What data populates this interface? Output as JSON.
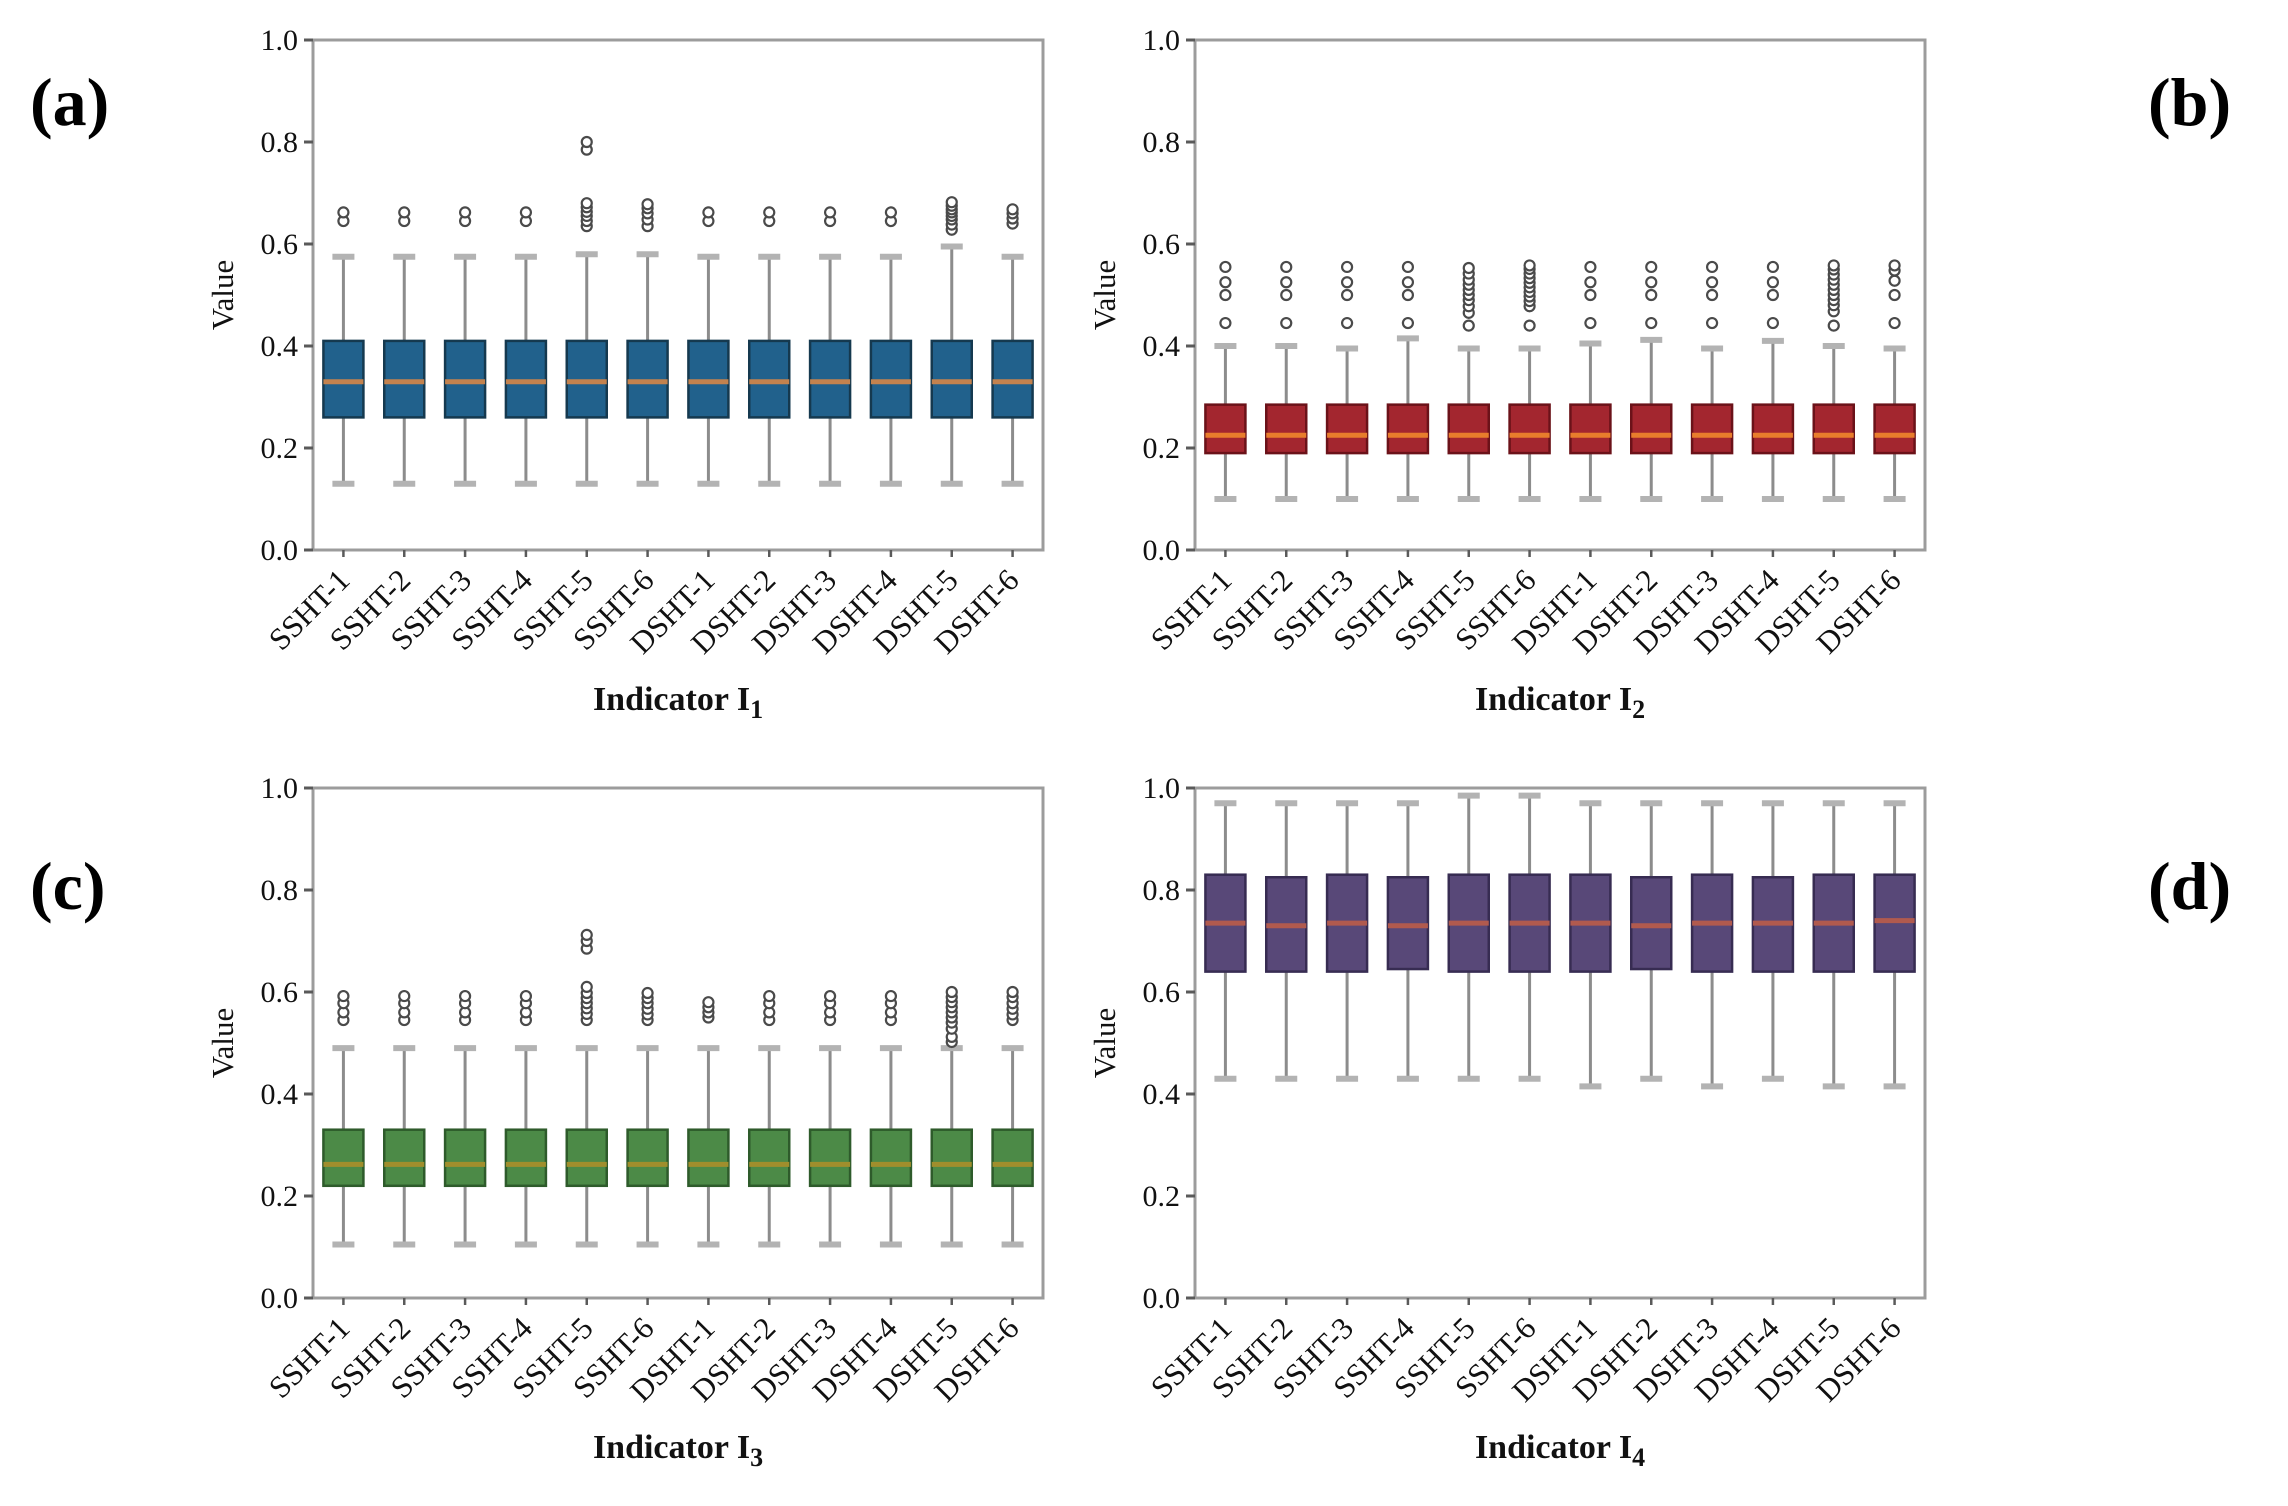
{
  "figure": {
    "panel_letters": {
      "a": "(a)",
      "b": "(b)",
      "c": "(c)",
      "d": "(d)"
    }
  },
  "chart_data": [
    {
      "panel": "a",
      "type": "boxplot",
      "ylabel": "Value",
      "ylim": [
        0.0,
        1.0
      ],
      "yticks": [
        {
          "label": "0.0",
          "v": 0.0
        },
        {
          "label": "0.2",
          "v": 0.2
        },
        {
          "label": "0.4",
          "v": 0.4
        },
        {
          "label": "0.6",
          "v": 0.6
        },
        {
          "label": "0.8",
          "v": 0.8
        },
        {
          "label": "1.0",
          "v": 1.0
        }
      ],
      "xlabel": {
        "main": "Indicator I",
        "sub": "1"
      },
      "categories": [
        "SSHT-1",
        "SSHT-2",
        "SSHT-3",
        "SSHT-4",
        "SSHT-5",
        "SSHT-6",
        "DSHT-1",
        "DSHT-2",
        "DSHT-3",
        "DSHT-4",
        "DSHT-5",
        "DSHT-6"
      ],
      "colors": {
        "box_fill": "#21618C",
        "box_edge": "#15394F",
        "median": "#C3824E",
        "whisker": "#8C8C8C",
        "cap": "#B3B3B3",
        "outlier": "#4A4A4A",
        "frame": "#9C9C9C",
        "tick": "#5A5A5A"
      },
      "boxes": [
        {
          "lo": 0.13,
          "q1": 0.26,
          "med": 0.33,
          "q3": 0.41,
          "hi": 0.575,
          "out": [
            0.645,
            0.662
          ]
        },
        {
          "lo": 0.13,
          "q1": 0.26,
          "med": 0.33,
          "q3": 0.41,
          "hi": 0.575,
          "out": [
            0.645,
            0.662
          ]
        },
        {
          "lo": 0.13,
          "q1": 0.26,
          "med": 0.33,
          "q3": 0.41,
          "hi": 0.575,
          "out": [
            0.645,
            0.662
          ]
        },
        {
          "lo": 0.13,
          "q1": 0.26,
          "med": 0.33,
          "q3": 0.41,
          "hi": 0.575,
          "out": [
            0.645,
            0.662
          ]
        },
        {
          "lo": 0.13,
          "q1": 0.26,
          "med": 0.33,
          "q3": 0.41,
          "hi": 0.58,
          "out": [
            0.635,
            0.645,
            0.655,
            0.663,
            0.672,
            0.68,
            0.785,
            0.8
          ]
        },
        {
          "lo": 0.13,
          "q1": 0.26,
          "med": 0.33,
          "q3": 0.41,
          "hi": 0.58,
          "out": [
            0.635,
            0.648,
            0.66,
            0.67,
            0.678
          ]
        },
        {
          "lo": 0.13,
          "q1": 0.26,
          "med": 0.33,
          "q3": 0.41,
          "hi": 0.575,
          "out": [
            0.645,
            0.662
          ]
        },
        {
          "lo": 0.13,
          "q1": 0.26,
          "med": 0.33,
          "q3": 0.41,
          "hi": 0.575,
          "out": [
            0.645,
            0.662
          ]
        },
        {
          "lo": 0.13,
          "q1": 0.26,
          "med": 0.33,
          "q3": 0.41,
          "hi": 0.575,
          "out": [
            0.645,
            0.662
          ]
        },
        {
          "lo": 0.13,
          "q1": 0.26,
          "med": 0.33,
          "q3": 0.41,
          "hi": 0.575,
          "out": [
            0.645,
            0.662
          ]
        },
        {
          "lo": 0.13,
          "q1": 0.26,
          "med": 0.33,
          "q3": 0.41,
          "hi": 0.595,
          "out": [
            0.628,
            0.638,
            0.648,
            0.655,
            0.662,
            0.668,
            0.675,
            0.682
          ]
        },
        {
          "lo": 0.13,
          "q1": 0.26,
          "med": 0.33,
          "q3": 0.41,
          "hi": 0.575,
          "out": [
            0.64,
            0.65,
            0.66,
            0.668
          ]
        }
      ]
    },
    {
      "panel": "b",
      "type": "boxplot",
      "ylabel": "Value",
      "ylim": [
        0.0,
        1.0
      ],
      "yticks": [
        {
          "label": "0.0",
          "v": 0.0
        },
        {
          "label": "0.2",
          "v": 0.2
        },
        {
          "label": "0.4",
          "v": 0.4
        },
        {
          "label": "0.6",
          "v": 0.6
        },
        {
          "label": "0.8",
          "v": 0.8
        },
        {
          "label": "1.0",
          "v": 1.0
        }
      ],
      "xlabel": {
        "main": "Indicator I",
        "sub": "2"
      },
      "categories": [
        "SSHT-1",
        "SSHT-2",
        "SSHT-3",
        "SSHT-4",
        "SSHT-5",
        "SSHT-6",
        "DSHT-1",
        "DSHT-2",
        "DSHT-3",
        "DSHT-4",
        "DSHT-5",
        "DSHT-6"
      ],
      "colors": {
        "box_fill": "#A3262F",
        "box_edge": "#6B1219",
        "median": "#E87D2C",
        "whisker": "#8C8C8C",
        "cap": "#B3B3B3",
        "outlier": "#4A4A4A",
        "frame": "#9C9C9C",
        "tick": "#5A5A5A"
      },
      "boxes": [
        {
          "lo": 0.1,
          "q1": 0.19,
          "med": 0.225,
          "q3": 0.285,
          "hi": 0.4,
          "out": [
            0.445,
            0.5,
            0.525,
            0.555
          ]
        },
        {
          "lo": 0.1,
          "q1": 0.19,
          "med": 0.225,
          "q3": 0.285,
          "hi": 0.4,
          "out": [
            0.445,
            0.5,
            0.525,
            0.555
          ]
        },
        {
          "lo": 0.1,
          "q1": 0.19,
          "med": 0.225,
          "q3": 0.285,
          "hi": 0.395,
          "out": [
            0.445,
            0.5,
            0.525,
            0.555
          ]
        },
        {
          "lo": 0.1,
          "q1": 0.19,
          "med": 0.225,
          "q3": 0.285,
          "hi": 0.415,
          "out": [
            0.445,
            0.5,
            0.525,
            0.555
          ]
        },
        {
          "lo": 0.1,
          "q1": 0.19,
          "med": 0.225,
          "q3": 0.285,
          "hi": 0.395,
          "out": [
            0.44,
            0.465,
            0.478,
            0.49,
            0.5,
            0.51,
            0.52,
            0.53,
            0.542,
            0.553
          ]
        },
        {
          "lo": 0.1,
          "q1": 0.19,
          "med": 0.225,
          "q3": 0.285,
          "hi": 0.395,
          "out": [
            0.44,
            0.478,
            0.488,
            0.497,
            0.506,
            0.515,
            0.524,
            0.533,
            0.542,
            0.551,
            0.558
          ]
        },
        {
          "lo": 0.1,
          "q1": 0.19,
          "med": 0.225,
          "q3": 0.285,
          "hi": 0.405,
          "out": [
            0.445,
            0.5,
            0.525,
            0.555
          ]
        },
        {
          "lo": 0.1,
          "q1": 0.19,
          "med": 0.225,
          "q3": 0.285,
          "hi": 0.412,
          "out": [
            0.445,
            0.5,
            0.525,
            0.555
          ]
        },
        {
          "lo": 0.1,
          "q1": 0.19,
          "med": 0.225,
          "q3": 0.285,
          "hi": 0.395,
          "out": [
            0.445,
            0.5,
            0.525,
            0.555
          ]
        },
        {
          "lo": 0.1,
          "q1": 0.19,
          "med": 0.225,
          "q3": 0.285,
          "hi": 0.41,
          "out": [
            0.445,
            0.5,
            0.525,
            0.555
          ]
        },
        {
          "lo": 0.1,
          "q1": 0.19,
          "med": 0.225,
          "q3": 0.285,
          "hi": 0.4,
          "out": [
            0.44,
            0.468,
            0.48,
            0.49,
            0.5,
            0.51,
            0.52,
            0.53,
            0.54,
            0.55,
            0.558
          ]
        },
        {
          "lo": 0.1,
          "q1": 0.19,
          "med": 0.225,
          "q3": 0.285,
          "hi": 0.395,
          "out": [
            0.445,
            0.5,
            0.528,
            0.548,
            0.558
          ]
        }
      ]
    },
    {
      "panel": "c",
      "type": "boxplot",
      "ylabel": "Value",
      "ylim": [
        0.0,
        1.0
      ],
      "yticks": [
        {
          "label": "0.0",
          "v": 0.0
        },
        {
          "label": "0.2",
          "v": 0.2
        },
        {
          "label": "0.4",
          "v": 0.4
        },
        {
          "label": "0.6",
          "v": 0.6
        },
        {
          "label": "0.8",
          "v": 0.8
        },
        {
          "label": "1.0",
          "v": 1.0
        }
      ],
      "xlabel": {
        "main": "Indicator I",
        "sub": "3"
      },
      "categories": [
        "SSHT-1",
        "SSHT-2",
        "SSHT-3",
        "SSHT-4",
        "SSHT-5",
        "SSHT-6",
        "DSHT-1",
        "DSHT-2",
        "DSHT-3",
        "DSHT-4",
        "DSHT-5",
        "DSHT-6"
      ],
      "colors": {
        "box_fill": "#4C8A47",
        "box_edge": "#2E5B2B",
        "median": "#A08E2C",
        "whisker": "#8C8C8C",
        "cap": "#B3B3B3",
        "outlier": "#4A4A4A",
        "frame": "#9C9C9C",
        "tick": "#5A5A5A"
      },
      "boxes": [
        {
          "lo": 0.105,
          "q1": 0.22,
          "med": 0.262,
          "q3": 0.33,
          "hi": 0.49,
          "out": [
            0.545,
            0.56,
            0.578,
            0.592
          ]
        },
        {
          "lo": 0.105,
          "q1": 0.22,
          "med": 0.262,
          "q3": 0.33,
          "hi": 0.49,
          "out": [
            0.545,
            0.56,
            0.578,
            0.592
          ]
        },
        {
          "lo": 0.105,
          "q1": 0.22,
          "med": 0.262,
          "q3": 0.33,
          "hi": 0.49,
          "out": [
            0.545,
            0.56,
            0.578,
            0.592
          ]
        },
        {
          "lo": 0.105,
          "q1": 0.22,
          "med": 0.262,
          "q3": 0.33,
          "hi": 0.49,
          "out": [
            0.545,
            0.56,
            0.578,
            0.592
          ]
        },
        {
          "lo": 0.105,
          "q1": 0.22,
          "med": 0.262,
          "q3": 0.33,
          "hi": 0.49,
          "out": [
            0.545,
            0.557,
            0.568,
            0.578,
            0.588,
            0.598,
            0.61,
            0.685,
            0.7,
            0.712
          ]
        },
        {
          "lo": 0.105,
          "q1": 0.22,
          "med": 0.262,
          "q3": 0.33,
          "hi": 0.49,
          "out": [
            0.545,
            0.556,
            0.567,
            0.578,
            0.588,
            0.598
          ]
        },
        {
          "lo": 0.105,
          "q1": 0.22,
          "med": 0.262,
          "q3": 0.33,
          "hi": 0.49,
          "out": [
            0.55,
            0.56,
            0.57,
            0.58
          ]
        },
        {
          "lo": 0.105,
          "q1": 0.22,
          "med": 0.262,
          "q3": 0.33,
          "hi": 0.49,
          "out": [
            0.545,
            0.56,
            0.578,
            0.592
          ]
        },
        {
          "lo": 0.105,
          "q1": 0.22,
          "med": 0.262,
          "q3": 0.33,
          "hi": 0.49,
          "out": [
            0.545,
            0.56,
            0.578,
            0.592
          ]
        },
        {
          "lo": 0.105,
          "q1": 0.22,
          "med": 0.262,
          "q3": 0.33,
          "hi": 0.49,
          "out": [
            0.545,
            0.56,
            0.578,
            0.592
          ]
        },
        {
          "lo": 0.105,
          "q1": 0.22,
          "med": 0.262,
          "q3": 0.33,
          "hi": 0.49,
          "out": [
            0.502,
            0.512,
            0.528,
            0.54,
            0.55,
            0.56,
            0.57,
            0.58,
            0.59,
            0.6
          ]
        },
        {
          "lo": 0.105,
          "q1": 0.22,
          "med": 0.262,
          "q3": 0.33,
          "hi": 0.49,
          "out": [
            0.545,
            0.556,
            0.567,
            0.578,
            0.59,
            0.6
          ]
        }
      ]
    },
    {
      "panel": "d",
      "type": "boxplot",
      "ylabel": "Value",
      "ylim": [
        0.0,
        1.0
      ],
      "yticks": [
        {
          "label": "0.0",
          "v": 0.0
        },
        {
          "label": "0.2",
          "v": 0.2
        },
        {
          "label": "0.4",
          "v": 0.4
        },
        {
          "label": "0.6",
          "v": 0.6
        },
        {
          "label": "0.8",
          "v": 0.8
        },
        {
          "label": "1.0",
          "v": 1.0
        }
      ],
      "xlabel": {
        "main": "Indicator I",
        "sub": "4"
      },
      "categories": [
        "SSHT-1",
        "SSHT-2",
        "SSHT-3",
        "SSHT-4",
        "SSHT-5",
        "SSHT-6",
        "DSHT-1",
        "DSHT-2",
        "DSHT-3",
        "DSHT-4",
        "DSHT-5",
        "DSHT-6"
      ],
      "colors": {
        "box_fill": "#584878",
        "box_edge": "#372C52",
        "median": "#B15A4E",
        "whisker": "#8C8C8C",
        "cap": "#B3B3B3",
        "outlier": "#4A4A4A",
        "frame": "#9C9C9C",
        "tick": "#5A5A5A"
      },
      "boxes": [
        {
          "lo": 0.43,
          "q1": 0.64,
          "med": 0.735,
          "q3": 0.83,
          "hi": 0.97,
          "out": []
        },
        {
          "lo": 0.43,
          "q1": 0.64,
          "med": 0.73,
          "q3": 0.825,
          "hi": 0.97,
          "out": []
        },
        {
          "lo": 0.43,
          "q1": 0.64,
          "med": 0.735,
          "q3": 0.83,
          "hi": 0.97,
          "out": []
        },
        {
          "lo": 0.43,
          "q1": 0.645,
          "med": 0.73,
          "q3": 0.825,
          "hi": 0.97,
          "out": []
        },
        {
          "lo": 0.43,
          "q1": 0.64,
          "med": 0.735,
          "q3": 0.83,
          "hi": 0.985,
          "out": []
        },
        {
          "lo": 0.43,
          "q1": 0.64,
          "med": 0.735,
          "q3": 0.83,
          "hi": 0.985,
          "out": []
        },
        {
          "lo": 0.415,
          "q1": 0.64,
          "med": 0.735,
          "q3": 0.83,
          "hi": 0.97,
          "out": []
        },
        {
          "lo": 0.43,
          "q1": 0.645,
          "med": 0.73,
          "q3": 0.825,
          "hi": 0.97,
          "out": []
        },
        {
          "lo": 0.415,
          "q1": 0.64,
          "med": 0.735,
          "q3": 0.83,
          "hi": 0.97,
          "out": []
        },
        {
          "lo": 0.43,
          "q1": 0.64,
          "med": 0.735,
          "q3": 0.825,
          "hi": 0.97,
          "out": []
        },
        {
          "lo": 0.415,
          "q1": 0.64,
          "med": 0.735,
          "q3": 0.83,
          "hi": 0.97,
          "out": []
        },
        {
          "lo": 0.415,
          "q1": 0.64,
          "med": 0.74,
          "q3": 0.83,
          "hi": 0.97,
          "out": []
        }
      ]
    }
  ]
}
